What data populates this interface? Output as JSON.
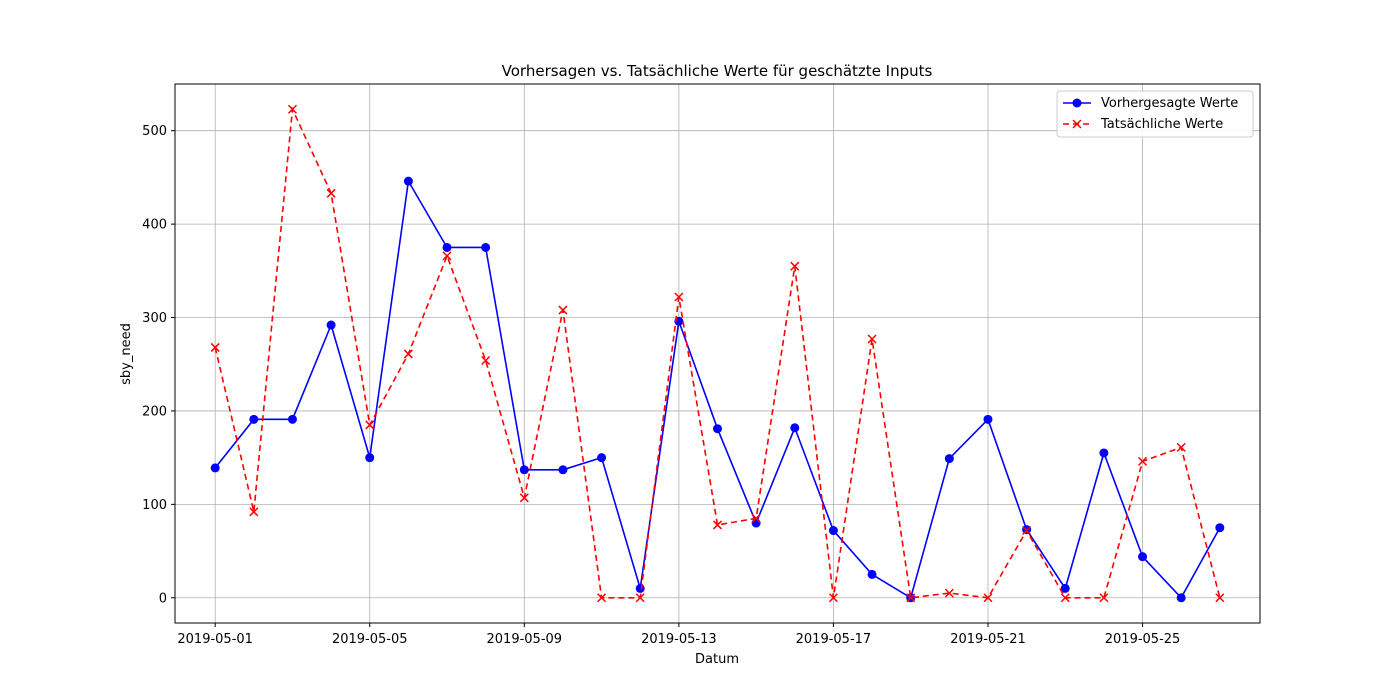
{
  "chart_data": {
    "type": "line",
    "title": "Vorhersagen vs. Tatsächliche Werte für geschätzte Inputs",
    "xlabel": "Datum",
    "ylabel": "sby_need",
    "x": [
      "2019-05-01",
      "2019-05-02",
      "2019-05-03",
      "2019-05-04",
      "2019-05-05",
      "2019-05-06",
      "2019-05-07",
      "2019-05-08",
      "2019-05-09",
      "2019-05-10",
      "2019-05-11",
      "2019-05-12",
      "2019-05-13",
      "2019-05-14",
      "2019-05-15",
      "2019-05-16",
      "2019-05-17",
      "2019-05-18",
      "2019-05-19",
      "2019-05-20",
      "2019-05-21",
      "2019-05-22",
      "2019-05-23",
      "2019-05-24",
      "2019-05-25",
      "2019-05-26",
      "2019-05-27"
    ],
    "xticks": [
      "2019-05-01",
      "2019-05-05",
      "2019-05-09",
      "2019-05-13",
      "2019-05-17",
      "2019-05-21",
      "2019-05-25"
    ],
    "yticks": [
      0,
      100,
      200,
      300,
      400,
      500
    ],
    "ylim": [
      -27,
      550
    ],
    "grid": true,
    "legend_position": "top-right",
    "series": [
      {
        "name": "Vorhergesagte Werte",
        "color": "#0000ff",
        "linestyle": "solid",
        "marker": "circle",
        "values": [
          139,
          191,
          191,
          292,
          150,
          446,
          375,
          375,
          137,
          137,
          150,
          10,
          296,
          181,
          80,
          182,
          72,
          25,
          0,
          149,
          191,
          73,
          10,
          155,
          44,
          0,
          75
        ]
      },
      {
        "name": "Tatsächliche Werte",
        "color": "#ff0000",
        "linestyle": "dashed",
        "marker": "x",
        "values": [
          268,
          92,
          523,
          433,
          185,
          261,
          366,
          254,
          107,
          308,
          0,
          0,
          322,
          78,
          85,
          355,
          0,
          277,
          0,
          5,
          0,
          72,
          0,
          0,
          146,
          161,
          0
        ]
      }
    ]
  }
}
